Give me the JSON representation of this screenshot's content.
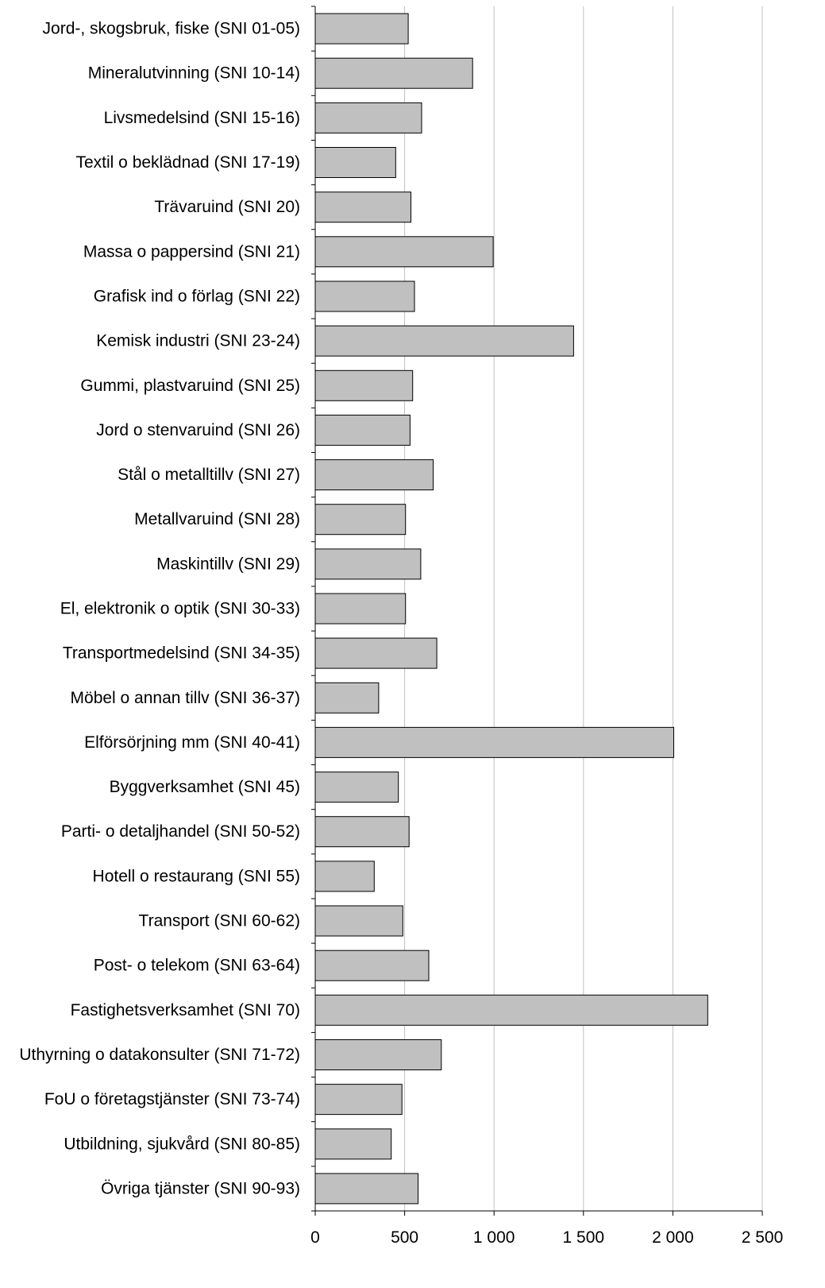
{
  "chart_data": {
    "type": "bar",
    "orientation": "horizontal",
    "title": "",
    "xlabel": "",
    "ylabel": "",
    "xlim": [
      0,
      2500
    ],
    "x_ticks": [
      0,
      500,
      1000,
      1500,
      2000,
      2500
    ],
    "x_tick_labels": [
      "0",
      "500",
      "1 000",
      "1 500",
      "2 000",
      "2 500"
    ],
    "grid": "vertical gridlines",
    "legend": "none",
    "bar_color": "#c0c0c0",
    "bar_edge_color": "#000000",
    "gridline_color": "#c0c0c0",
    "categories": [
      "Jord-, skogsbruk, fiske (SNI 01-05)",
      "Mineralutvinning (SNI 10-14)",
      "Livsmedelsind (SNI 15-16)",
      "Textil o beklädnad (SNI 17-19)",
      "Trävaruind (SNI 20)",
      "Massa o pappersind (SNI 21)",
      "Grafisk ind o förlag (SNI 22)",
      "Kemisk industri (SNI 23-24)",
      "Gummi, plastvaruind (SNI 25)",
      "Jord o stenvaruind (SNI 26)",
      "Stål o metalltillv (SNI 27)",
      "Metallvaruind (SNI 28)",
      "Maskintillv (SNI 29)",
      "El, elektronik o optik (SNI 30-33)",
      "Transportmedelsind (SNI 34-35)",
      "Möbel o annan tillv (SNI 36-37)",
      "Elförsörjning mm (SNI 40-41)",
      "Byggverksamhet (SNI 45)",
      "Parti- o detaljhandel (SNI 50-52)",
      "Hotell o restaurang (SNI 55)",
      "Transport (SNI 60-62)",
      "Post- o telekom (SNI 63-64)",
      "Fastighetsverksamhet (SNI 70)",
      "Uthyrning o datakonsulter (SNI 71-72)",
      "FoU o företagstjänster (SNI 73-74)",
      "Utbildning, sjukvård (SNI 80-85)",
      "Övriga tjänster (SNI 90-93)"
    ],
    "values": [
      520,
      880,
      595,
      450,
      535,
      995,
      555,
      1445,
      545,
      530,
      660,
      505,
      590,
      505,
      680,
      355,
      2005,
      465,
      525,
      330,
      490,
      635,
      2195,
      705,
      485,
      425,
      575
    ]
  }
}
